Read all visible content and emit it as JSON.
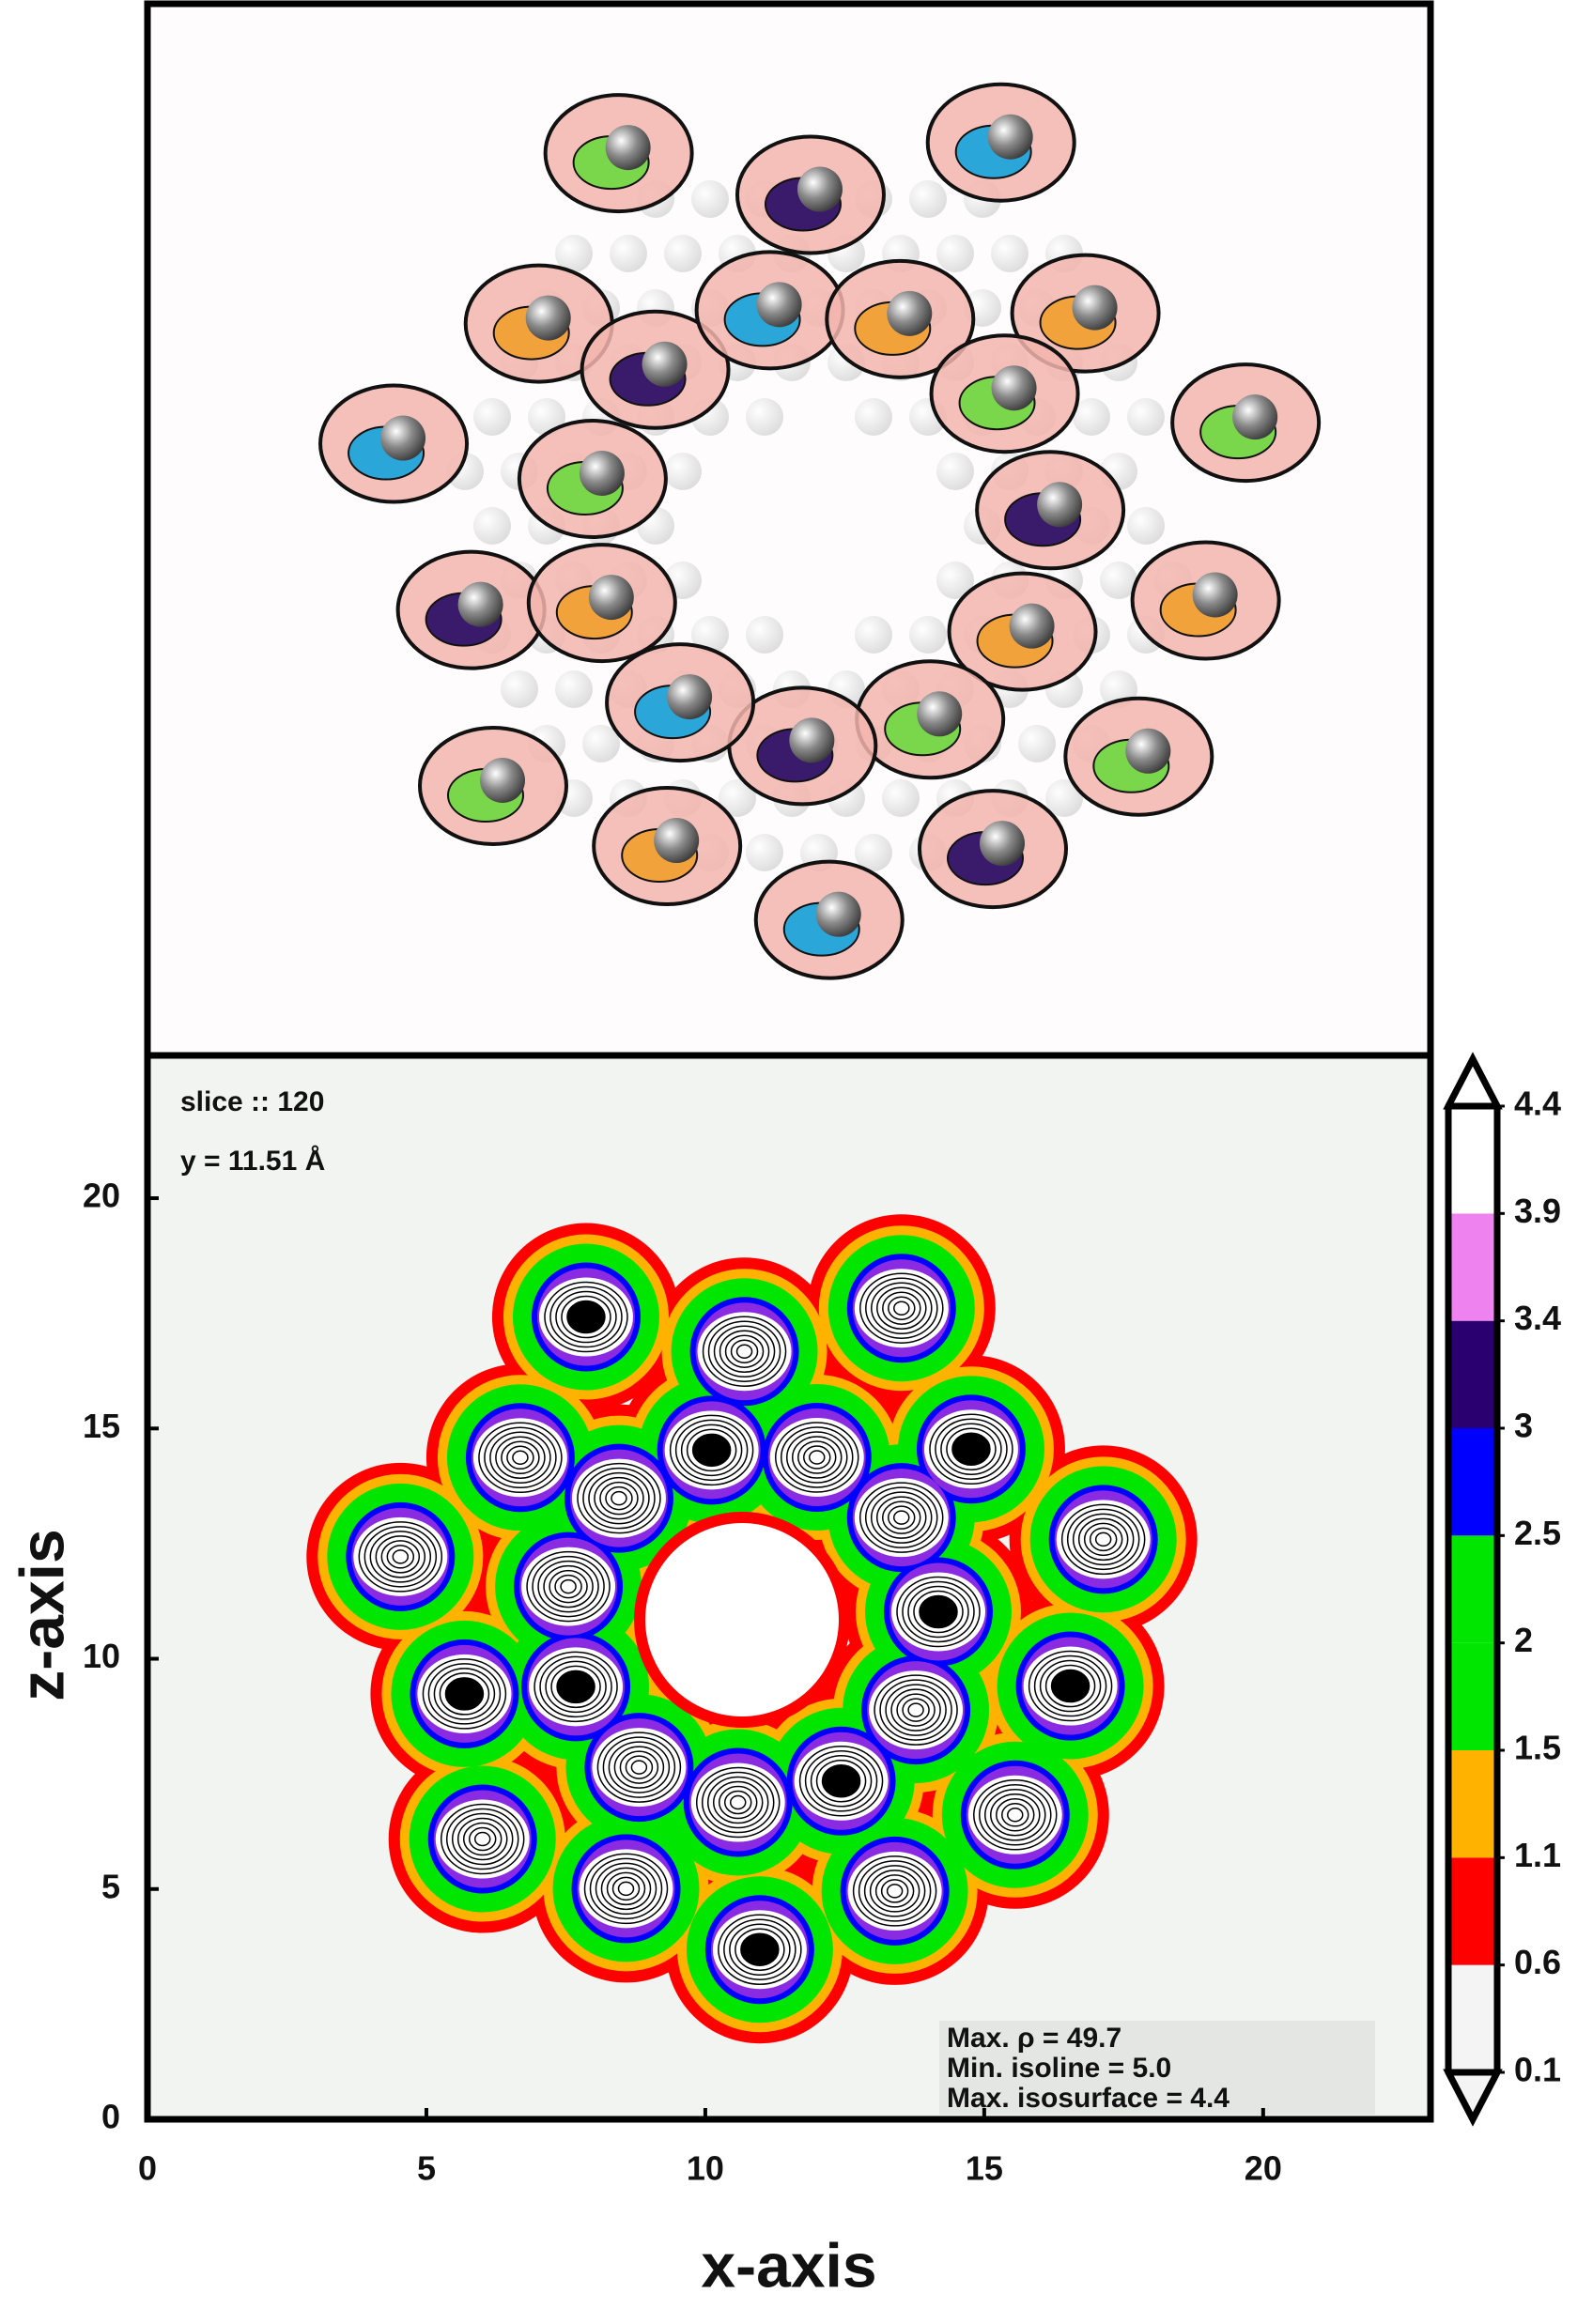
{
  "chart_data": {
    "type": "contour",
    "slice_label": "slice :: 120",
    "position_label": "y = 11.51 Å",
    "annotations": [
      "Max. ρ = 49.7",
      "Min. isoline = 5.0",
      "Max. isosurface = 4.4"
    ],
    "xlabel": "x-axis",
    "ylabel": "z-axis",
    "xlim": [
      0,
      23
    ],
    "xticks": [
      0,
      5,
      10,
      15,
      20
    ],
    "ylim": [
      0,
      23.1
    ],
    "yticks": [
      0,
      5,
      10,
      15,
      20
    ],
    "background": "#f2f4f1",
    "colorbar": {
      "levels": [
        0.1,
        0.6,
        1.1,
        1.5,
        2.0,
        2.5,
        3.0,
        3.4,
        3.9,
        4.4
      ],
      "colors": [
        "#f4f4f4",
        "#ff0000",
        "#ffb300",
        "#00e600",
        "#00e600",
        "#0000ff",
        "#2a0070",
        "#ee82ee",
        "#ffffff"
      ]
    }
  }
}
